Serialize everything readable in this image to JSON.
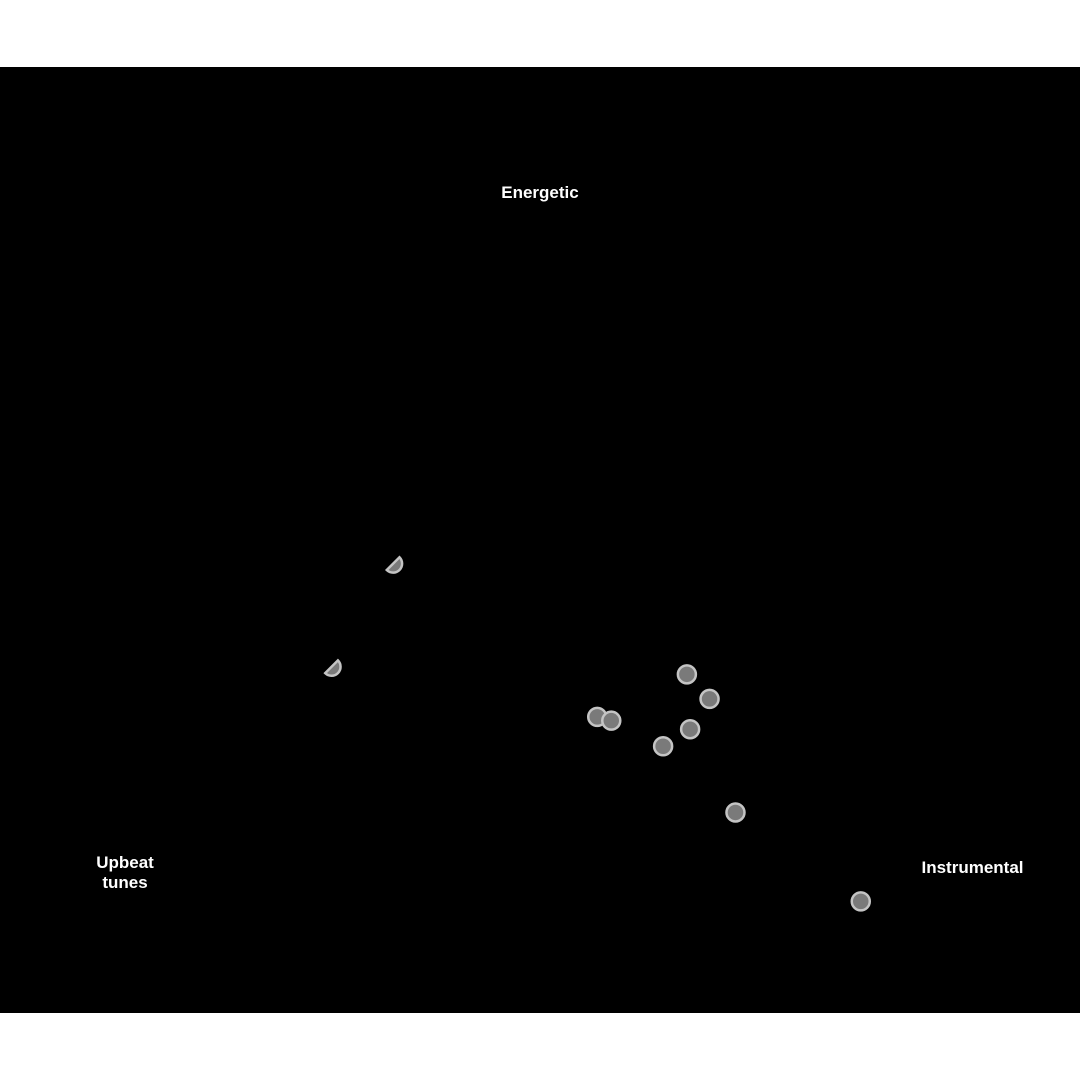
{
  "chart_data": {
    "type": "scatter",
    "title": "",
    "labels": {
      "top": "Energetic",
      "left": [
        "Upbeat",
        "tunes"
      ],
      "right": "Instrumental"
    },
    "xlim": [
      0,
      1
    ],
    "ylim": [
      0,
      1
    ],
    "grid": false,
    "point_color": "#7a7a7a",
    "point_stroke": "#c4c4c4",
    "background": "#000000",
    "points": [
      {
        "x": 0.364,
        "y": 0.475,
        "shape": "partial"
      },
      {
        "x": 0.307,
        "y": 0.366,
        "shape": "partial"
      },
      {
        "x": 0.636,
        "y": 0.358,
        "shape": "circle"
      },
      {
        "x": 0.657,
        "y": 0.332,
        "shape": "circle"
      },
      {
        "x": 0.553,
        "y": 0.313,
        "shape": "circle"
      },
      {
        "x": 0.566,
        "y": 0.309,
        "shape": "circle"
      },
      {
        "x": 0.639,
        "y": 0.3,
        "shape": "circle"
      },
      {
        "x": 0.614,
        "y": 0.282,
        "shape": "circle"
      },
      {
        "x": 0.681,
        "y": 0.212,
        "shape": "circle"
      },
      {
        "x": 0.797,
        "y": 0.118,
        "shape": "circle"
      }
    ]
  }
}
